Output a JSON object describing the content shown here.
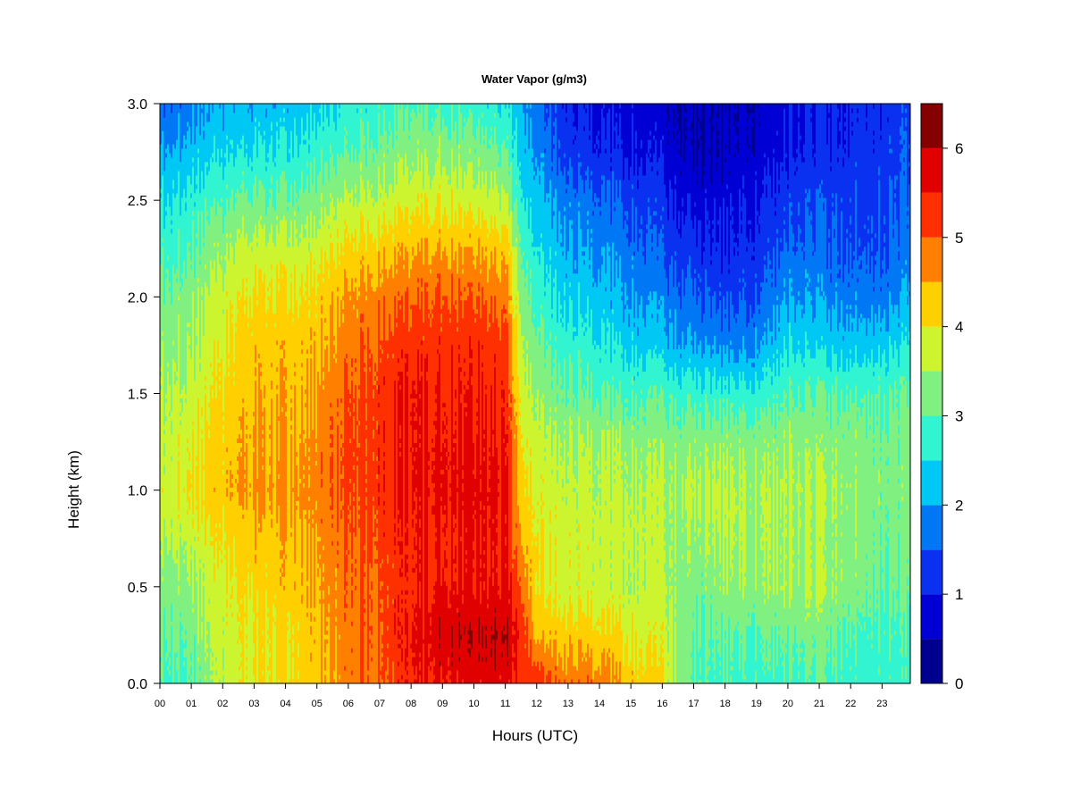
{
  "chart_data": {
    "type": "heatmap",
    "title": "Water Vapor (g/m3)",
    "xlabel": "Hours (UTC)",
    "ylabel": "Height (km)",
    "xlim": [
      0,
      23.9
    ],
    "ylim": [
      0.0,
      3.0
    ],
    "x_ticks": [
      {
        "value": 0,
        "label": "00"
      },
      {
        "value": 1,
        "label": "01"
      },
      {
        "value": 2,
        "label": "02"
      },
      {
        "value": 3,
        "label": "03"
      },
      {
        "value": 4,
        "label": "04"
      },
      {
        "value": 5,
        "label": "05"
      },
      {
        "value": 6,
        "label": "06"
      },
      {
        "value": 7,
        "label": "07"
      },
      {
        "value": 8,
        "label": "08"
      },
      {
        "value": 9,
        "label": "09"
      },
      {
        "value": 10,
        "label": "10"
      },
      {
        "value": 11,
        "label": "11"
      },
      {
        "value": 12,
        "label": "12"
      },
      {
        "value": 13,
        "label": "13"
      },
      {
        "value": 14,
        "label": "14"
      },
      {
        "value": 15,
        "label": "15"
      },
      {
        "value": 16,
        "label": "16"
      },
      {
        "value": 17,
        "label": "17"
      },
      {
        "value": 18,
        "label": "18"
      },
      {
        "value": 19,
        "label": "19"
      },
      {
        "value": 20,
        "label": "20"
      },
      {
        "value": 21,
        "label": "21"
      },
      {
        "value": 22,
        "label": "22"
      },
      {
        "value": 23,
        "label": "23"
      }
    ],
    "y_ticks": [
      {
        "value": 0.0,
        "label": "0.0"
      },
      {
        "value": 0.5,
        "label": "0.5"
      },
      {
        "value": 1.0,
        "label": "1.0"
      },
      {
        "value": 1.5,
        "label": "1.5"
      },
      {
        "value": 2.0,
        "label": "2.0"
      },
      {
        "value": 2.5,
        "label": "2.5"
      },
      {
        "value": 3.0,
        "label": "3.0"
      }
    ],
    "grid": false,
    "colorbar": {
      "placement": "right",
      "levels": [
        0,
        0.5,
        1,
        1.5,
        2,
        2.5,
        3,
        3.5,
        4,
        4.5,
        5,
        5.5,
        6,
        6.5
      ],
      "colors": [
        "#00008f",
        "#0000d4",
        "#0a30f0",
        "#0078f5",
        "#00c8f5",
        "#30f5d0",
        "#80f080",
        "#ccf530",
        "#ffd000",
        "#ff8000",
        "#ff3000",
        "#e00000",
        "#850000"
      ],
      "tick_labels": [
        {
          "value": 0,
          "label": "0"
        },
        {
          "value": 1,
          "label": "1"
        },
        {
          "value": 2,
          "label": "2"
        },
        {
          "value": 3,
          "label": "3"
        },
        {
          "value": 4,
          "label": "4"
        },
        {
          "value": 5,
          "label": "5"
        },
        {
          "value": 6,
          "label": "6"
        }
      ]
    },
    "grid_x": [
      0,
      1,
      2,
      3,
      4,
      5,
      6,
      7,
      8,
      9,
      10,
      11,
      11.5,
      12,
      13,
      14,
      15,
      16,
      17,
      18,
      19,
      20,
      21,
      22,
      23,
      23.9
    ],
    "grid_y": [
      0.0,
      0.25,
      0.5,
      0.75,
      1.0,
      1.25,
      1.5,
      1.75,
      2.0,
      2.25,
      2.5,
      2.75,
      3.0
    ],
    "z": [
      [
        2.9,
        3.0,
        3.6,
        4.0,
        4.1,
        4.3,
        4.8,
        5.0,
        5.4,
        5.6,
        5.7,
        5.7,
        5.2,
        5.2,
        4.9,
        4.8,
        4.3,
        4.0,
        2.9,
        2.8,
        2.8,
        2.9,
        2.9,
        2.8,
        2.8,
        2.8
      ],
      [
        3.0,
        3.2,
        3.7,
        4.0,
        4.1,
        4.4,
        4.8,
        5.1,
        5.5,
        5.9,
        6.0,
        6.0,
        5.4,
        4.3,
        4.3,
        4.2,
        4.0,
        3.8,
        3.0,
        3.0,
        3.0,
        3.1,
        3.2,
        3.0,
        2.9,
        2.8
      ],
      [
        3.2,
        3.4,
        3.8,
        4.1,
        4.3,
        4.5,
        4.9,
        5.1,
        5.4,
        5.6,
        5.6,
        5.6,
        5.0,
        3.9,
        3.8,
        3.7,
        3.6,
        3.6,
        3.2,
        3.3,
        3.4,
        3.5,
        3.5,
        3.3,
        3.1,
        3.0
      ],
      [
        3.5,
        3.7,
        4.0,
        4.3,
        4.4,
        4.6,
        5.0,
        5.2,
        5.4,
        5.5,
        5.6,
        5.5,
        4.5,
        3.9,
        3.8,
        3.7,
        3.7,
        3.5,
        3.4,
        3.5,
        3.5,
        3.5,
        3.4,
        3.3,
        3.2,
        3.1
      ],
      [
        3.7,
        4.1,
        4.3,
        4.6,
        4.6,
        4.8,
        5.1,
        5.3,
        5.5,
        5.7,
        5.7,
        5.6,
        4.2,
        3.8,
        3.7,
        3.6,
        3.6,
        3.5,
        3.6,
        3.6,
        3.5,
        3.6,
        3.5,
        3.4,
        3.3,
        3.2
      ],
      [
        3.6,
        3.9,
        4.2,
        4.5,
        4.5,
        4.7,
        5.1,
        5.3,
        5.5,
        5.6,
        5.6,
        5.5,
        4.0,
        3.6,
        3.5,
        3.5,
        3.4,
        3.3,
        3.3,
        3.3,
        3.3,
        3.4,
        3.3,
        3.3,
        3.2,
        3.2
      ],
      [
        3.5,
        3.7,
        4.1,
        4.4,
        4.4,
        4.6,
        5.0,
        5.3,
        5.5,
        5.5,
        5.5,
        5.4,
        3.8,
        3.3,
        3.1,
        3.0,
        2.9,
        2.9,
        2.8,
        2.7,
        2.7,
        3.0,
        3.0,
        3.0,
        3.0,
        3.0
      ],
      [
        3.3,
        3.5,
        3.9,
        4.3,
        4.3,
        4.4,
        4.8,
        5.1,
        5.3,
        5.3,
        5.4,
        5.2,
        3.6,
        3.0,
        2.8,
        2.6,
        2.4,
        2.2,
        2.0,
        1.8,
        1.9,
        2.5,
        2.3,
        2.3,
        2.4,
        2.5
      ],
      [
        3.1,
        3.3,
        3.7,
        4.1,
        4.1,
        4.2,
        4.6,
        4.8,
        4.9,
        5.1,
        5.0,
        4.8,
        3.3,
        2.7,
        2.4,
        2.2,
        2.0,
        1.8,
        1.6,
        1.3,
        1.5,
        2.0,
        1.9,
        1.8,
        1.8,
        2.0
      ],
      [
        2.8,
        3.0,
        3.4,
        3.7,
        3.7,
        3.8,
        4.1,
        4.3,
        4.4,
        4.5,
        4.5,
        4.3,
        3.0,
        2.4,
        2.1,
        1.9,
        1.7,
        1.4,
        1.2,
        1.0,
        1.2,
        1.6,
        1.6,
        1.5,
        1.5,
        1.7
      ],
      [
        2.5,
        2.7,
        2.9,
        3.1,
        3.1,
        3.3,
        3.6,
        3.7,
        3.8,
        3.9,
        3.8,
        3.6,
        2.6,
        2.1,
        1.8,
        1.6,
        1.4,
        1.2,
        0.8,
        0.8,
        1.0,
        1.3,
        1.4,
        1.4,
        1.4,
        1.5
      ],
      [
        2.0,
        2.2,
        2.4,
        2.5,
        2.6,
        2.8,
        3.0,
        3.2,
        3.3,
        3.4,
        3.3,
        3.0,
        2.3,
        1.8,
        1.3,
        1.1,
        1.0,
        0.8,
        0.5,
        0.5,
        0.7,
        1.0,
        1.1,
        1.2,
        1.3,
        1.4
      ],
      [
        1.5,
        1.8,
        2.0,
        2.1,
        2.2,
        2.4,
        2.6,
        2.8,
        2.9,
        2.9,
        2.8,
        2.5,
        2.1,
        1.6,
        1.1,
        0.9,
        0.8,
        0.6,
        0.5,
        0.5,
        0.6,
        0.9,
        1.0,
        1.1,
        1.2,
        1.3
      ]
    ]
  }
}
